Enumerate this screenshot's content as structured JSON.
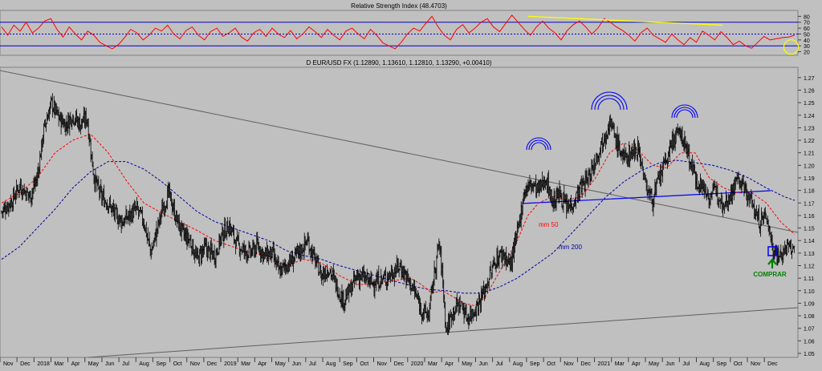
{
  "chart_data": [
    {
      "panel": "indicator",
      "type": "line",
      "title": "Relative Strength Index (48.4703)",
      "ylim": [
        14,
        90
      ],
      "y_ticks": [
        20,
        30,
        40,
        50,
        60,
        70,
        80
      ],
      "reference_levels": [
        30,
        50,
        70
      ],
      "line_color": "#ff0000",
      "level_color": "#0000c8",
      "series": [
        {
          "values": [
            62,
            48,
            65,
            55,
            70,
            52,
            60,
            72,
            76,
            58,
            45,
            62,
            50,
            40,
            55,
            48,
            36,
            30,
            25,
            32,
            44,
            58,
            52,
            40,
            48,
            60,
            55,
            65,
            50,
            42,
            56,
            62,
            48,
            40,
            54,
            60,
            46,
            52,
            60,
            45,
            38,
            52,
            58,
            46,
            60,
            50,
            44,
            56,
            42,
            50,
            62,
            54,
            44,
            58,
            48,
            40,
            55,
            60,
            50,
            42,
            58,
            48,
            35,
            30,
            25,
            36,
            50,
            60,
            55,
            68,
            80,
            62,
            48,
            40,
            58,
            66,
            52,
            60,
            70,
            76,
            62,
            54,
            68,
            82,
            70,
            58,
            48,
            62,
            72,
            60,
            52,
            40,
            56,
            66,
            72,
            62,
            50,
            60,
            76,
            70,
            62,
            56,
            48,
            38,
            52,
            60,
            48,
            42,
            36,
            50,
            40,
            32,
            44,
            36,
            55,
            48,
            40,
            54,
            44,
            32,
            38,
            30,
            26,
            36,
            46,
            40,
            42,
            44,
            45,
            48
          ]
        }
      ],
      "trendline_annotation": {
        "color": "#ffff00",
        "from": [
          146,
          80
        ],
        "to": [
          200,
          65
        ]
      },
      "circle_annotation": {
        "color": "#ffff00",
        "center": [
          219,
          28
        ]
      }
    },
    {
      "panel": "price",
      "type": "line",
      "title": "D EUR/USD FX (1.12890, 1.13610, 1.12810, 1.13290, +0.00410)",
      "ylim": [
        1.0468,
        1.2782
      ],
      "y_ticks": [
        "1.05",
        "1.06",
        "1.07",
        "1.08",
        "1.09",
        "1.10",
        "1.11",
        "1.12",
        "1.13",
        "1.14",
        "1.15",
        "1.16",
        "1.17",
        "1.18",
        "1.19",
        "1.20",
        "1.21",
        "1.22",
        "1.23",
        "1.24",
        "1.25",
        "1.26",
        "1.27"
      ],
      "x_tick_labels": [
        "Nov",
        "Dec",
        "2018",
        "Mar",
        "Apr",
        "May",
        "Jun",
        "Jul",
        "Aug",
        "Sep",
        "Oct",
        "Nov",
        "Dec",
        "2019",
        "Mar",
        "Apr",
        "May",
        "Jun",
        "Jul",
        "Aug",
        "Sep",
        "Oct",
        "Nov",
        "Dec",
        "2020",
        "Mar",
        "Apr",
        "May",
        "Jun",
        "Jul",
        "Aug",
        "Sep",
        "Oct",
        "Nov",
        "Dec",
        "2021",
        "Mar",
        "Apr",
        "May",
        "Jun",
        "Jul",
        "Aug",
        "Sep",
        "Oct",
        "Nov",
        "Dec"
      ],
      "x_range": [
        0,
        220
      ],
      "series": [
        {
          "name": "EUR/USD",
          "color": "#000000",
          "points": [
            [
              0,
              1.163
            ],
            [
              3,
              1.172
            ],
            [
              5,
              1.184
            ],
            [
              8,
              1.175
            ],
            [
              10,
              1.19
            ],
            [
              12,
              1.23
            ],
            [
              14,
              1.25
            ],
            [
              16,
              1.238
            ],
            [
              18,
              1.232
            ],
            [
              20,
              1.24
            ],
            [
              22,
              1.233
            ],
            [
              24,
              1.238
            ],
            [
              26,
              1.19
            ],
            [
              28,
              1.175
            ],
            [
              30,
              1.17
            ],
            [
              32,
              1.16
            ],
            [
              34,
              1.155
            ],
            [
              36,
              1.16
            ],
            [
              38,
              1.165
            ],
            [
              40,
              1.155
            ],
            [
              42,
              1.13
            ],
            [
              45,
              1.163
            ],
            [
              47,
              1.178
            ],
            [
              49,
              1.158
            ],
            [
              51,
              1.145
            ],
            [
              53,
              1.14
            ],
            [
              55,
              1.125
            ],
            [
              57,
              1.134
            ],
            [
              60,
              1.128
            ],
            [
              62,
              1.145
            ],
            [
              64,
              1.152
            ],
            [
              66,
              1.138
            ],
            [
              68,
              1.132
            ],
            [
              70,
              1.13
            ],
            [
              72,
              1.136
            ],
            [
              74,
              1.128
            ],
            [
              76,
              1.13
            ],
            [
              78,
              1.115
            ],
            [
              80,
              1.12
            ],
            [
              82,
              1.125
            ],
            [
              84,
              1.132
            ],
            [
              86,
              1.14
            ],
            [
              88,
              1.125
            ],
            [
              90,
              1.112
            ],
            [
              92,
              1.118
            ],
            [
              94,
              1.105
            ],
            [
              96,
              1.092
            ],
            [
              98,
              1.1
            ],
            [
              100,
              1.112
            ],
            [
              102,
              1.11
            ],
            [
              104,
              1.106
            ],
            [
              106,
              1.108
            ],
            [
              108,
              1.11
            ],
            [
              110,
              1.115
            ],
            [
              112,
              1.12
            ],
            [
              114,
              1.11
            ],
            [
              116,
              1.1
            ],
            [
              118,
              1.085
            ],
            [
              120,
              1.08
            ],
            [
              122,
              1.12
            ],
            [
              123,
              1.138
            ],
            [
              124,
              1.11
            ],
            [
              125,
              1.068
            ],
            [
              127,
              1.085
            ],
            [
              129,
              1.09
            ],
            [
              131,
              1.078
            ],
            [
              133,
              1.085
            ],
            [
              135,
              1.095
            ],
            [
              137,
              1.11
            ],
            [
              139,
              1.125
            ],
            [
              141,
              1.13
            ],
            [
              143,
              1.12
            ],
            [
              145,
              1.145
            ],
            [
              147,
              1.18
            ],
            [
              149,
              1.185
            ],
            [
              151,
              1.18
            ],
            [
              153,
              1.19
            ],
            [
              155,
              1.17
            ],
            [
              157,
              1.178
            ],
            [
              159,
              1.165
            ],
            [
              161,
              1.172
            ],
            [
              163,
              1.183
            ],
            [
              165,
              1.19
            ],
            [
              167,
              1.205
            ],
            [
              169,
              1.22
            ],
            [
              171,
              1.235
            ],
            [
              173,
              1.218
            ],
            [
              175,
              1.205
            ],
            [
              177,
              1.21
            ],
            [
              179,
              1.215
            ],
            [
              181,
              1.185
            ],
            [
              183,
              1.172
            ],
            [
              185,
              1.19
            ],
            [
              187,
              1.205
            ],
            [
              189,
              1.222
            ],
            [
              191,
              1.225
            ],
            [
              193,
              1.21
            ],
            [
              195,
              1.19
            ],
            [
              197,
              1.183
            ],
            [
              199,
              1.175
            ],
            [
              201,
              1.18
            ],
            [
              203,
              1.17
            ],
            [
              205,
              1.177
            ],
            [
              207,
              1.19
            ],
            [
              209,
              1.18
            ],
            [
              211,
              1.17
            ],
            [
              213,
              1.155
            ],
            [
              215,
              1.16
            ],
            [
              217,
              1.132
            ],
            [
              219,
              1.128
            ],
            [
              221,
              1.135
            ],
            [
              223,
              1.132
            ]
          ]
        },
        {
          "name": "mm 50",
          "color": "#ff0000",
          "points": [
            [
              0,
              1.17
            ],
            [
              5,
              1.178
            ],
            [
              10,
              1.19
            ],
            [
              15,
              1.21
            ],
            [
              20,
              1.22
            ],
            [
              25,
              1.225
            ],
            [
              30,
              1.21
            ],
            [
              35,
              1.188
            ],
            [
              40,
              1.17
            ],
            [
              45,
              1.162
            ],
            [
              50,
              1.155
            ],
            [
              55,
              1.148
            ],
            [
              60,
              1.14
            ],
            [
              65,
              1.135
            ],
            [
              70,
              1.13
            ],
            [
              75,
              1.128
            ],
            [
              80,
              1.12
            ],
            [
              85,
              1.125
            ],
            [
              90,
              1.122
            ],
            [
              95,
              1.112
            ],
            [
              100,
              1.105
            ],
            [
              105,
              1.105
            ],
            [
              110,
              1.108
            ],
            [
              115,
              1.11
            ],
            [
              118,
              1.105
            ],
            [
              121,
              1.098
            ],
            [
              124,
              1.1
            ],
            [
              127,
              1.095
            ],
            [
              130,
              1.09
            ],
            [
              133,
              1.088
            ],
            [
              136,
              1.095
            ],
            [
              139,
              1.11
            ],
            [
              142,
              1.125
            ],
            [
              145,
              1.14
            ],
            [
              148,
              1.16
            ],
            [
              151,
              1.17
            ],
            [
              155,
              1.175
            ],
            [
              159,
              1.172
            ],
            [
              163,
              1.175
            ],
            [
              167,
              1.19
            ],
            [
              171,
              1.21
            ],
            [
              175,
              1.218
            ],
            [
              179,
              1.212
            ],
            [
              183,
              1.2
            ],
            [
              187,
              1.198
            ],
            [
              191,
              1.21
            ],
            [
              195,
              1.21
            ],
            [
              199,
              1.19
            ],
            [
              203,
              1.182
            ],
            [
              207,
              1.178
            ],
            [
              211,
              1.178
            ],
            [
              215,
              1.17
            ],
            [
              219,
              1.155
            ],
            [
              223,
              1.145
            ]
          ]
        },
        {
          "name": "mm 200",
          "color": "#0000a0",
          "points": [
            [
              0,
              1.125
            ],
            [
              5,
              1.135
            ],
            [
              10,
              1.15
            ],
            [
              15,
              1.165
            ],
            [
              20,
              1.182
            ],
            [
              25,
              1.195
            ],
            [
              30,
              1.203
            ],
            [
              35,
              1.203
            ],
            [
              40,
              1.197
            ],
            [
              45,
              1.187
            ],
            [
              50,
              1.175
            ],
            [
              55,
              1.163
            ],
            [
              60,
              1.155
            ],
            [
              65,
              1.15
            ],
            [
              70,
              1.145
            ],
            [
              75,
              1.14
            ],
            [
              80,
              1.132
            ],
            [
              85,
              1.128
            ],
            [
              90,
              1.125
            ],
            [
              95,
              1.12
            ],
            [
              100,
              1.116
            ],
            [
              105,
              1.112
            ],
            [
              110,
              1.108
            ],
            [
              115,
              1.104
            ],
            [
              120,
              1.101
            ],
            [
              125,
              1.1
            ],
            [
              130,
              1.098
            ],
            [
              135,
              1.098
            ],
            [
              140,
              1.103
            ],
            [
              145,
              1.11
            ],
            [
              150,
              1.12
            ],
            [
              155,
              1.13
            ],
            [
              160,
              1.145
            ],
            [
              165,
              1.16
            ],
            [
              170,
              1.175
            ],
            [
              175,
              1.187
            ],
            [
              180,
              1.196
            ],
            [
              185,
              1.202
            ],
            [
              190,
              1.204
            ],
            [
              195,
              1.202
            ],
            [
              200,
              1.2
            ],
            [
              205,
              1.196
            ],
            [
              210,
              1.19
            ],
            [
              215,
              1.182
            ],
            [
              220,
              1.175
            ],
            [
              223,
              1.172
            ]
          ]
        }
      ],
      "annotations": [
        {
          "type": "label",
          "text": "mm 50",
          "color": "#ff0000"
        },
        {
          "type": "label",
          "text": "mm 200",
          "color": "#0000a0"
        },
        {
          "type": "label",
          "text": "COMPRAR",
          "color": "#008000"
        }
      ]
    }
  ]
}
